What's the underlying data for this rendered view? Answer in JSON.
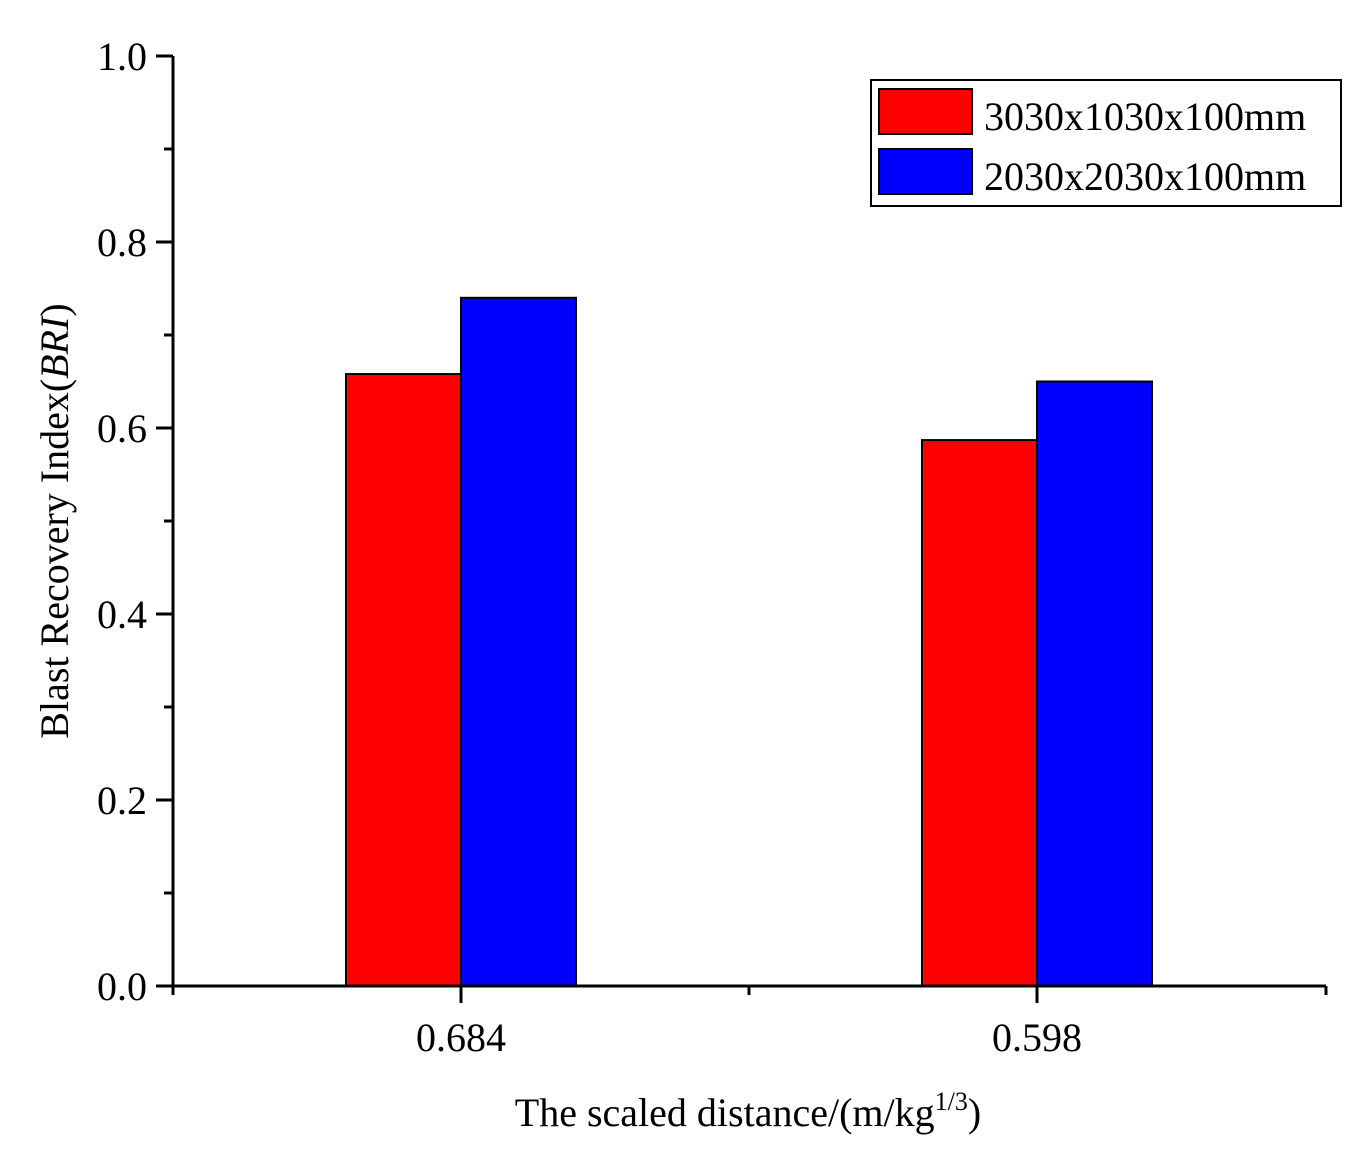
{
  "chart_data": {
    "type": "bar",
    "categories": [
      "0.684",
      "0.598"
    ],
    "series": [
      {
        "name": "3030x1030x100mm",
        "values": [
          0.658,
          0.587
        ],
        "color": "#ff0000"
      },
      {
        "name": "2030x2030x100mm",
        "values": [
          0.74,
          0.65
        ],
        "color": "#0000ff"
      }
    ],
    "ylim": [
      0.0,
      1.0
    ],
    "yticks": [
      "0.0",
      "0.2",
      "0.4",
      "0.6",
      "0.8",
      "1.0"
    ],
    "ylabel": {
      "prefix": "Blast Recovery Index(",
      "italic": "BRI",
      "suffix": ")"
    },
    "xlabel": {
      "main": "The scaled distance/(m/kg",
      "superscript": "1/3",
      "suffix": ")"
    },
    "legend_position": "top-right",
    "grid": false
  }
}
